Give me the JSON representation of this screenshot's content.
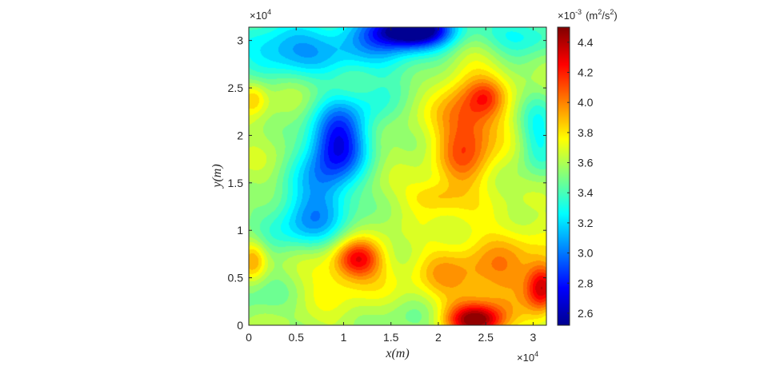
{
  "chart_data": {
    "type": "heatmap",
    "title": "",
    "xlabel": "x(m)",
    "ylabel": "y(m)",
    "x_multiplier": "×10",
    "x_multiplier_exp": "4",
    "y_multiplier": "×10",
    "y_multiplier_exp": "4",
    "xlim": [
      0,
      3.14
    ],
    "ylim": [
      0,
      3.14
    ],
    "x_ticks": [
      {
        "value": 0,
        "label": "0"
      },
      {
        "value": 0.5,
        "label": "0.5"
      },
      {
        "value": 1,
        "label": "1"
      },
      {
        "value": 1.5,
        "label": "1.5"
      },
      {
        "value": 2,
        "label": "2"
      },
      {
        "value": 2.5,
        "label": "2.5"
      },
      {
        "value": 3,
        "label": "3"
      }
    ],
    "y_ticks": [
      {
        "value": 0,
        "label": "0"
      },
      {
        "value": 0.5,
        "label": "0.5"
      },
      {
        "value": 1,
        "label": "1"
      },
      {
        "value": 1.5,
        "label": "1.5"
      },
      {
        "value": 2,
        "label": "2"
      },
      {
        "value": 2.5,
        "label": "2.5"
      },
      {
        "value": 3,
        "label": "3"
      }
    ],
    "colormap": "jet",
    "colorbar": {
      "multiplier": "×10",
      "multiplier_exp": "-3",
      "unit_prefix": "(m",
      "unit_exp1": "2",
      "unit_mid": "/s",
      "unit_exp2": "2",
      "unit_suffix": ")",
      "clim": [
        2.52,
        4.5
      ],
      "ticks": [
        {
          "value": 2.6,
          "label": "2.6"
        },
        {
          "value": 2.8,
          "label": "2.8"
        },
        {
          "value": 3.0,
          "label": "3.0"
        },
        {
          "value": 3.2,
          "label": "3.2"
        },
        {
          "value": 3.4,
          "label": "3.4"
        },
        {
          "value": 3.6,
          "label": "3.6"
        },
        {
          "value": 3.8,
          "label": "3.8"
        },
        {
          "value": 4.0,
          "label": "4.0"
        },
        {
          "value": 4.2,
          "label": "4.2"
        },
        {
          "value": 4.4,
          "label": "4.4"
        }
      ]
    },
    "grid": false,
    "base_value": 3.62,
    "field_features": [
      {
        "x": 1.72,
        "y": 3.12,
        "amp": -1.05,
        "sx": 0.3,
        "sy": 0.13
      },
      {
        "x": 1.25,
        "y": 2.95,
        "amp": -0.45,
        "sx": 0.7,
        "sy": 0.25
      },
      {
        "x": 0.3,
        "y": 2.9,
        "amp": -0.35,
        "sx": 0.35,
        "sy": 0.2
      },
      {
        "x": 2.9,
        "y": 3.05,
        "amp": -0.35,
        "sx": 0.3,
        "sy": 0.15
      },
      {
        "x": 0.95,
        "y": 1.95,
        "amp": -0.8,
        "sx": 0.22,
        "sy": 0.3
      },
      {
        "x": 0.75,
        "y": 1.45,
        "amp": -0.4,
        "sx": 0.25,
        "sy": 0.35
      },
      {
        "x": 0.55,
        "y": 1.05,
        "amp": -0.35,
        "sx": 0.35,
        "sy": 0.22
      },
      {
        "x": 3.05,
        "y": 2.0,
        "amp": -0.35,
        "sx": 0.15,
        "sy": 0.3
      },
      {
        "x": 1.35,
        "y": 2.3,
        "amp": -0.2,
        "sx": 0.2,
        "sy": 0.2
      },
      {
        "x": 0.1,
        "y": 0.3,
        "amp": -0.15,
        "sx": 0.3,
        "sy": 0.2
      },
      {
        "x": 2.35,
        "y": 2.25,
        "amp": 0.45,
        "sx": 0.25,
        "sy": 0.4
      },
      {
        "x": 2.5,
        "y": 2.4,
        "amp": 0.2,
        "sx": 0.12,
        "sy": 0.12
      },
      {
        "x": 2.25,
        "y": 1.75,
        "amp": 0.25,
        "sx": 0.2,
        "sy": 0.3
      },
      {
        "x": 1.95,
        "y": 1.35,
        "amp": 0.25,
        "sx": 0.2,
        "sy": 0.12
      },
      {
        "x": 1.15,
        "y": 0.7,
        "amp": 0.55,
        "sx": 0.17,
        "sy": 0.14
      },
      {
        "x": 1.0,
        "y": 0.55,
        "amp": 0.2,
        "sx": 0.35,
        "sy": 0.25
      },
      {
        "x": 2.4,
        "y": 0.05,
        "amp": 0.75,
        "sx": 0.22,
        "sy": 0.12
      },
      {
        "x": 2.4,
        "y": 0.45,
        "amp": 0.25,
        "sx": 0.35,
        "sy": 0.35
      },
      {
        "x": 3.1,
        "y": 0.4,
        "amp": 0.65,
        "sx": 0.12,
        "sy": 0.18
      },
      {
        "x": 2.8,
        "y": 0.65,
        "amp": 0.2,
        "sx": 0.3,
        "sy": 0.3
      },
      {
        "x": 0.05,
        "y": 0.7,
        "amp": 0.35,
        "sx": 0.1,
        "sy": 0.15
      },
      {
        "x": 0.05,
        "y": 2.4,
        "amp": 0.25,
        "sx": 0.1,
        "sy": 0.12
      },
      {
        "x": 1.75,
        "y": 0.05,
        "amp": -0.15,
        "sx": 0.25,
        "sy": 0.15
      },
      {
        "x": 2.0,
        "y": 0.55,
        "amp": 0.15,
        "sx": 0.2,
        "sy": 0.2
      }
    ]
  }
}
